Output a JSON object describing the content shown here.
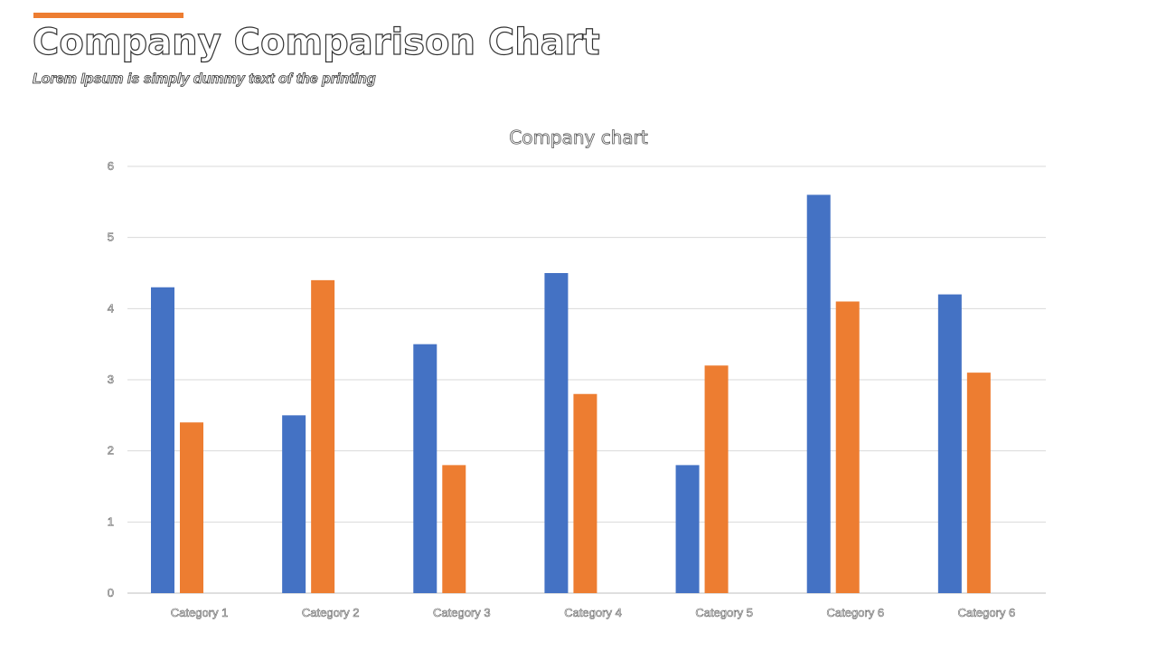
{
  "slide": {
    "title": "Company Comparison Chart",
    "subtitle": "Lorem Ipsum is simply dummy text of the printing",
    "accent_color": "#ED7D31"
  },
  "chart_data": {
    "type": "bar",
    "title": "Company chart",
    "categories": [
      "Category 1",
      "Category 2",
      "Category 3",
      "Category 4",
      "Category 5",
      "Category 6",
      "Category 6"
    ],
    "series": [
      {
        "color": "#4472C4",
        "values": [
          4.3,
          2.5,
          3.5,
          4.5,
          1.8,
          5.6,
          4.2
        ]
      },
      {
        "color": "#ED7D31",
        "values": [
          2.4,
          4.4,
          1.8,
          2.8,
          3.2,
          4.1,
          3.1
        ]
      }
    ],
    "yticks": [
      "0",
      "1",
      "2",
      "3",
      "4",
      "5",
      "6"
    ],
    "ylim": [
      0,
      6
    ],
    "grid": true,
    "legend": "none"
  }
}
